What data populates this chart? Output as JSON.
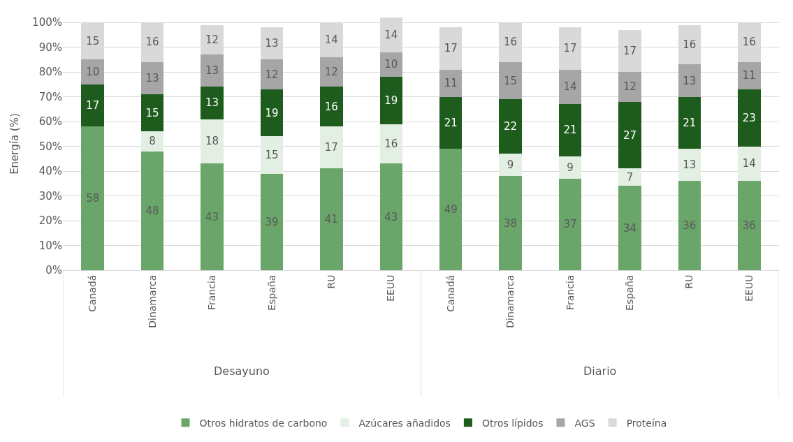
{
  "chart_data": {
    "type": "bar",
    "stacked": true,
    "ylabel": "Energía (%)",
    "categories": [
      "Canadá",
      "Dinamarca",
      "Francia",
      "España",
      "RU",
      "EEUU",
      "Canadá",
      "Dinamarca",
      "Francia",
      "España",
      "RU",
      "EEUU"
    ],
    "annotations": [
      "Desayuno",
      "Diario"
    ],
    "series": [
      {
        "name": "Otros hidratos de carbono",
        "color": "#6aa56a",
        "values": [
          58,
          48,
          43,
          39,
          41,
          43,
          49,
          38,
          37,
          34,
          36,
          36
        ]
      },
      {
        "name": "Azúcares añadidos",
        "color": "#e2efe2",
        "values": [
          null,
          8,
          18,
          15,
          17,
          16,
          null,
          9,
          9,
          7,
          13,
          14
        ]
      },
      {
        "name": "Otros lípidos",
        "color": "#1e5c1e",
        "values": [
          17,
          15,
          13,
          19,
          16,
          19,
          21,
          22,
          21,
          27,
          21,
          23
        ]
      },
      {
        "name": "AGS",
        "color": "#a6a6a6",
        "values": [
          10,
          13,
          13,
          12,
          12,
          10,
          11,
          15,
          14,
          12,
          13,
          11
        ]
      },
      {
        "name": "Proteína",
        "color": "#d9d9d9",
        "values": [
          15,
          16,
          12,
          13,
          14,
          14,
          17,
          16,
          17,
          17,
          16,
          16
        ]
      }
    ],
    "data_labels": true,
    "ylim": [
      0,
      102
    ],
    "yticks": [
      {
        "value": 0,
        "label": "0%"
      },
      {
        "value": 10,
        "label": "10%"
      },
      {
        "value": 20,
        "label": "20%"
      },
      {
        "value": 30,
        "label": "30%"
      },
      {
        "value": 40,
        "label": "40%"
      },
      {
        "value": 50,
        "label": "50%"
      },
      {
        "value": 60,
        "label": "60%"
      },
      {
        "value": 70,
        "label": "70%"
      },
      {
        "value": 80,
        "label": "80%"
      },
      {
        "value": 90,
        "label": "90%"
      },
      {
        "value": 100,
        "label": "100%"
      }
    ],
    "grid": "y",
    "legend": "bottom"
  }
}
